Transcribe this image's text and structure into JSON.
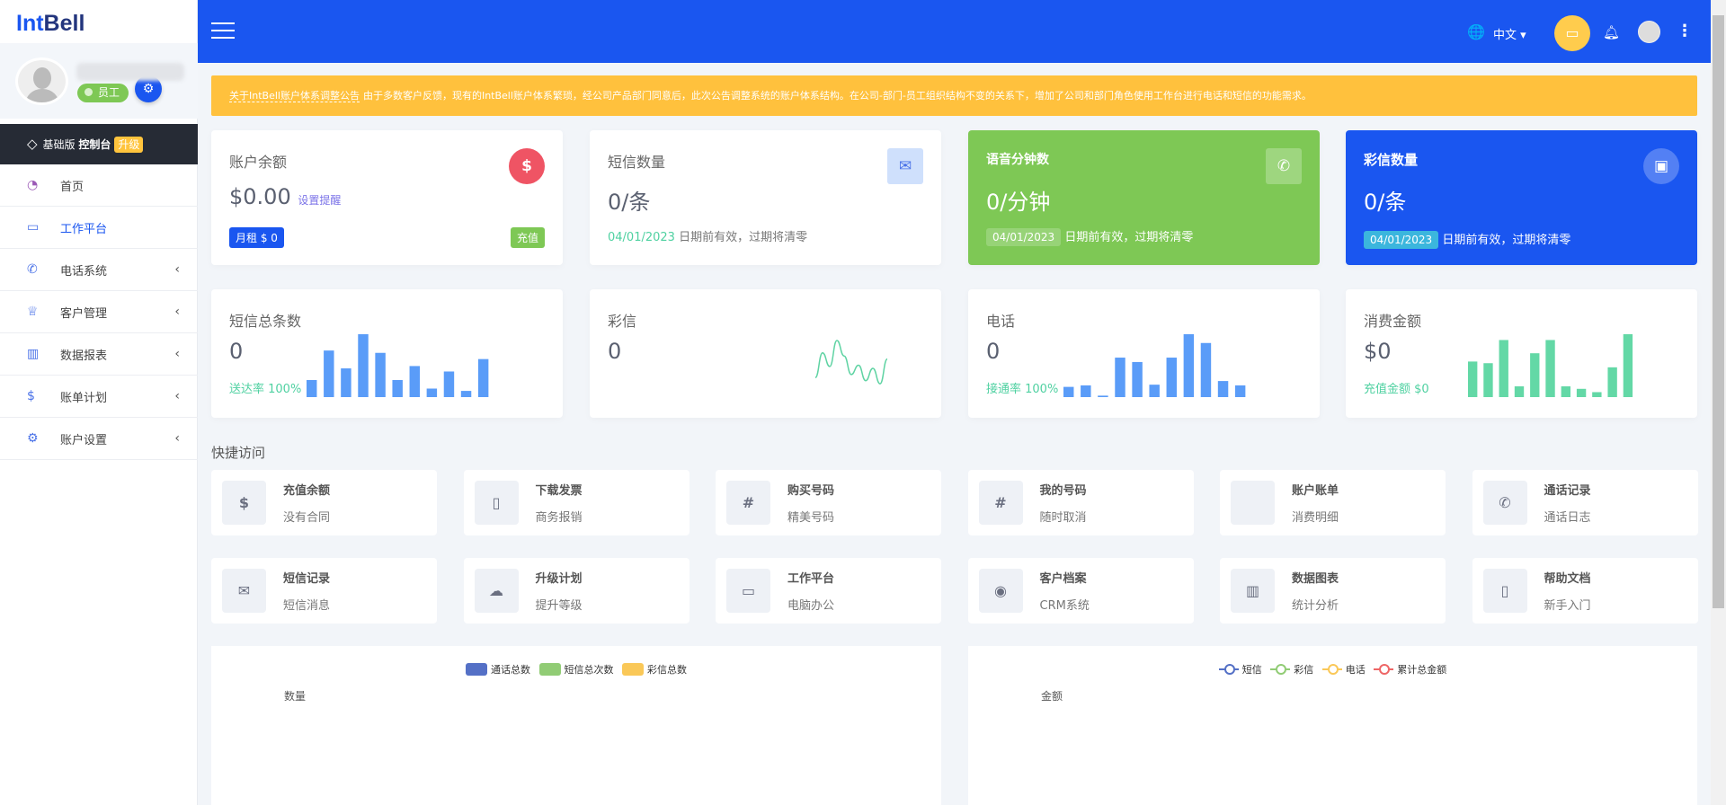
{
  "sidebar": {
    "logo": {
      "part1": "Int",
      "part2": "Bell"
    },
    "role": "员工",
    "plan": {
      "edition": "基础版",
      "console": "控制台",
      "upgrade": "升级"
    },
    "items": [
      {
        "label": "首页",
        "icon": "dashboard-icon"
      },
      {
        "label": "工作平台",
        "icon": "workstation-icon",
        "active": true
      },
      {
        "label": "电话系统",
        "icon": "phone-icon",
        "has_children": true
      },
      {
        "label": "客户管理",
        "icon": "crown-icon",
        "has_children": true
      },
      {
        "label": "数据报表",
        "icon": "bar-chart-icon",
        "has_children": true
      },
      {
        "label": "账单计划",
        "icon": "dollar-icon",
        "has_children": true
      },
      {
        "label": "账户设置",
        "icon": "gear-icon",
        "has_children": true
      }
    ]
  },
  "topbar": {
    "language": "中文",
    "color": "#1a56f0"
  },
  "banner": {
    "link": "关于IntBell账户体系调整公告",
    "text": "由于多数客户反馈，现有的IntBell账户体系繁琐，经公司产品部门同意后，此次公告调整系统的账户体系结构。在公司-部门-员工组织结构不变的关系下，增加了公司和部门角色使用工作台进行电话和短信的功能需求。"
  },
  "stats": {
    "balance": {
      "title": "账户余额",
      "value": "$0.00",
      "link": "设置提醒",
      "rent": "月租 $ 0",
      "recharge": "充值"
    },
    "sms": {
      "title": "短信数量",
      "value": "0/条",
      "date": "04/01/2023",
      "note": "日期前有效，过期将清零"
    },
    "voice": {
      "title": "语音分钟数",
      "value": "0/分钟",
      "date": "04/01/2023",
      "note": "日期前有效，过期将清零"
    },
    "mms": {
      "title": "彩信数量",
      "value": "0/条",
      "date": "04/01/2023",
      "note": "日期前有效，过期将清零"
    }
  },
  "summary": {
    "sms_total": {
      "title": "短信总条数",
      "value": "0",
      "foot": "送达率 100%",
      "spark": [
        22,
        60,
        37,
        81,
        57,
        22,
        40,
        11,
        33,
        8,
        49
      ]
    },
    "mms": {
      "title": "彩信",
      "value": "0",
      "spark": [
        20,
        60,
        38,
        80,
        55,
        25,
        40,
        15,
        35,
        10,
        50
      ]
    },
    "phone": {
      "title": "电话",
      "value": "0",
      "foot": "接通率 100%",
      "spark": [
        14,
        16,
        2,
        54,
        48,
        17,
        54,
        86,
        74,
        22,
        16
      ]
    },
    "spend": {
      "title": "消费金额",
      "value": "$0",
      "foot": "充值金额 $0",
      "spark": [
        43,
        41,
        69,
        13,
        53,
        69,
        13,
        10,
        6,
        36,
        76
      ]
    }
  },
  "quick_access": {
    "title": "快捷访问",
    "items": [
      {
        "title": "充值余额",
        "sub": "没有合同",
        "icon": "$"
      },
      {
        "title": "下载发票",
        "sub": "商务报销",
        "icon": "▯"
      },
      {
        "title": "购买号码",
        "sub": "精美号码",
        "icon": "#"
      },
      {
        "title": "我的号码",
        "sub": "随时取消",
        "icon": "#"
      },
      {
        "title": "账户账单",
        "sub": "消费明细",
        "icon": ""
      },
      {
        "title": "通话记录",
        "sub": "通话日志",
        "icon": "✆"
      },
      {
        "title": "短信记录",
        "sub": "短信消息",
        "icon": "✉"
      },
      {
        "title": "升级计划",
        "sub": "提升等级",
        "icon": "☁"
      },
      {
        "title": "工作平台",
        "sub": "电脑办公",
        "icon": "▭"
      },
      {
        "title": "客户档案",
        "sub": "CRM系统",
        "icon": "◉"
      },
      {
        "title": "数据图表",
        "sub": "统计分析",
        "icon": "▥"
      },
      {
        "title": "帮助文档",
        "sub": "新手入门",
        "icon": "▯"
      }
    ]
  },
  "chart_data": [
    {
      "type": "bar",
      "title": "",
      "ylabel": "数量",
      "legend": "top",
      "series": [
        {
          "name": "通话总数",
          "color": "#5470c6",
          "values": []
        },
        {
          "name": "短信总次数",
          "color": "#91cc75",
          "values": []
        },
        {
          "name": "彩信总数",
          "color": "#fac858",
          "values": []
        }
      ]
    },
    {
      "type": "line",
      "title": "",
      "ylabel": "金额",
      "legend": "top",
      "series": [
        {
          "name": "短信",
          "color": "#5470c6",
          "values": []
        },
        {
          "name": "彩信",
          "color": "#91cc75",
          "values": []
        },
        {
          "name": "电话",
          "color": "#fac858",
          "values": []
        },
        {
          "name": "累计总金额",
          "color": "#ee6666",
          "values": []
        }
      ]
    }
  ]
}
